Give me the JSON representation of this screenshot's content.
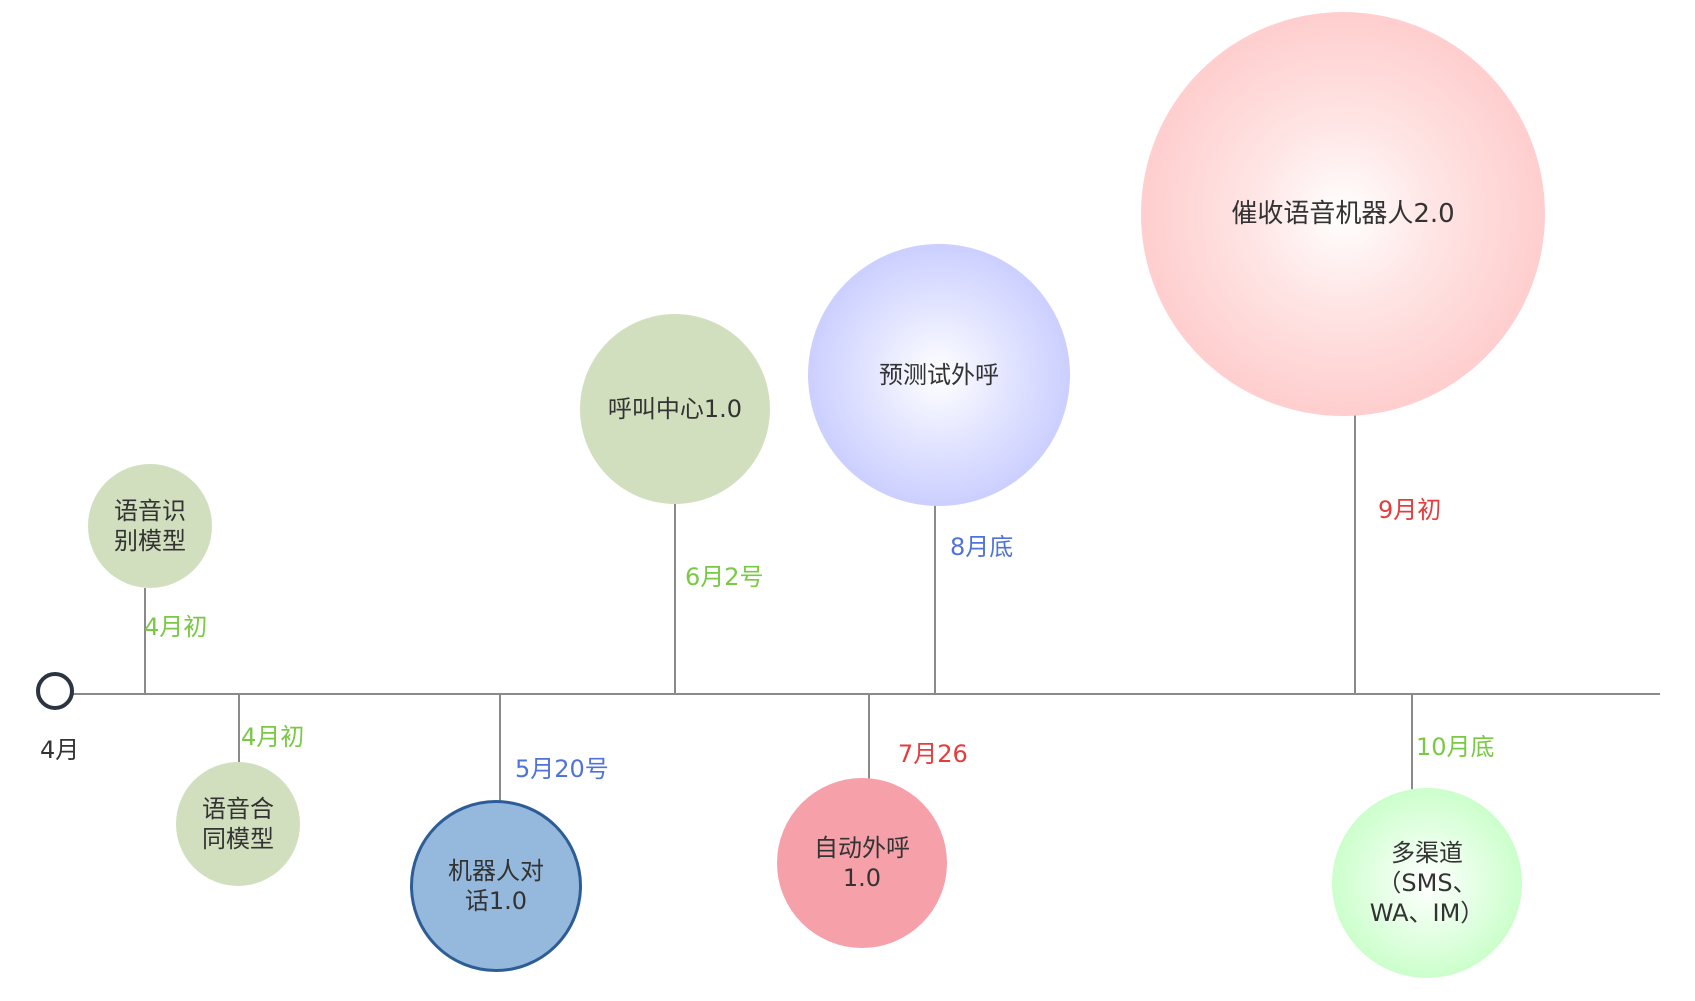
{
  "timeline": {
    "start_label": "4月"
  },
  "milestones": [
    {
      "id": "asr",
      "bubble_text": "语音识\n别模型",
      "date": "4月初",
      "bubble_color": "#d2dfbf",
      "date_color": "#79c945",
      "bubble_style": "flat-green"
    },
    {
      "id": "tts",
      "bubble_text": "语音合\n同模型",
      "date": "4月初",
      "bubble_color": "#d2dfbf",
      "date_color": "#79c945",
      "bubble_style": "flat-green"
    },
    {
      "id": "dialog",
      "bubble_text": "机器人对\n话1.0",
      "date": "5月20号",
      "bubble_color": "#95b9dc",
      "date_color": "#5073d7",
      "bubble_style": "outlined-blue"
    },
    {
      "id": "callcenter",
      "bubble_text": "呼叫中心1.0",
      "date": "6月2号",
      "bubble_color": "#d2dfbf",
      "date_color": "#79c945",
      "bubble_style": "flat-green"
    },
    {
      "id": "autodial",
      "bubble_text": "自动外呼\n1.0",
      "date": "7月26",
      "bubble_color": "#f6a0aa",
      "date_color": "#e53c3c",
      "bubble_style": "flat-pink"
    },
    {
      "id": "predictive",
      "bubble_text": "预测试外呼",
      "date": "8月底",
      "bubble_color": "#b7bcff",
      "date_color": "#5073d7",
      "bubble_style": "radial-blue"
    },
    {
      "id": "collection",
      "bubble_text": "催收语音机器人2.0",
      "date": "9月初",
      "bubble_color": "#ffbcbc",
      "date_color": "#e53c3c",
      "bubble_style": "radial-red"
    },
    {
      "id": "omnichannel",
      "bubble_text": "多渠道\n（SMS、\nWA、IM）",
      "date": "10月底",
      "bubble_color": "#b6ffb6",
      "date_color": "#79c945",
      "bubble_style": "radial-green"
    }
  ]
}
